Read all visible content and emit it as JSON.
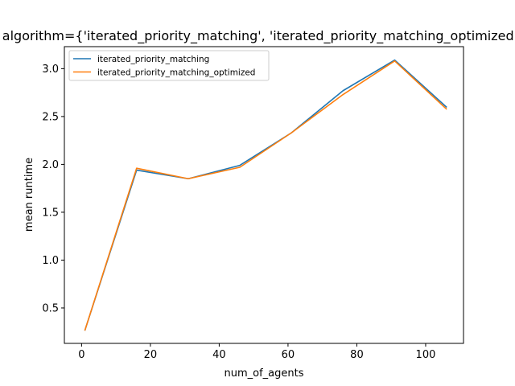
{
  "chart_data": {
    "type": "line",
    "title": "algorithm={'iterated_priority_matching', 'iterated_priority_matching_optimized'}",
    "xlabel": "num_of_agents",
    "ylabel": "mean runtime",
    "xlim": [
      -5,
      111
    ],
    "ylim": [
      0.13,
      3.23
    ],
    "xticks": [
      0,
      20,
      40,
      60,
      80,
      100
    ],
    "yticks": [
      0.5,
      1.0,
      1.5,
      2.0,
      2.5,
      3.0
    ],
    "xtick_labels": [
      "0",
      "20",
      "40",
      "60",
      "80",
      "100"
    ],
    "ytick_labels": [
      "0.5",
      "1.0",
      "1.5",
      "2.0",
      "2.5",
      "3.0"
    ],
    "grid": false,
    "legend_position": "top-left",
    "x": [
      1,
      16,
      31,
      46,
      61,
      76,
      91,
      106
    ],
    "series": [
      {
        "name": "iterated_priority_matching",
        "color": "#1f77b4",
        "values": [
          0.27,
          1.94,
          1.85,
          1.99,
          2.33,
          2.77,
          3.09,
          2.6
        ]
      },
      {
        "name": "iterated_priority_matching_optimized",
        "color": "#ff7f0e",
        "values": [
          0.27,
          1.96,
          1.85,
          1.97,
          2.33,
          2.73,
          3.08,
          2.58
        ]
      }
    ]
  }
}
